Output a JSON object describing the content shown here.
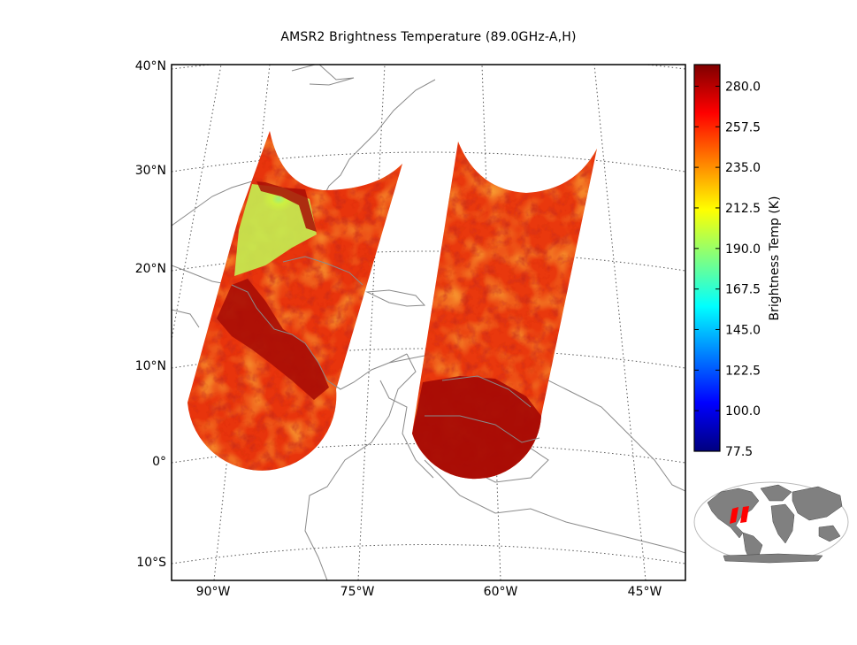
{
  "title": "AMSR2 Brightness Temperature (89.0GHz-A,H)",
  "colorbar": {
    "label": "Brightness Temp (K)",
    "min": 77.5,
    "max": 292.0,
    "ticks": [
      "280.0",
      "257.5",
      "235.0",
      "212.5",
      "190.0",
      "167.5",
      "145.0",
      "122.5",
      "100.0",
      "77.5"
    ],
    "colors": [
      "#00007f",
      "#0000ff",
      "#0080ff",
      "#00ffff",
      "#80ff80",
      "#ffff00",
      "#ff8000",
      "#ff0000",
      "#7f0000"
    ]
  },
  "map": {
    "projection": "lambert-conformal",
    "lat_labels": [
      "40°N",
      "30°N",
      "20°N",
      "10°N",
      "0°",
      "10°S"
    ],
    "lon_labels": [
      "90°W",
      "75°W",
      "60°W",
      "45°W"
    ],
    "swath_colors": {
      "dominant": "#e8300c",
      "land": "#a80d06",
      "cold": "#b8f048"
    }
  },
  "inset": {
    "type": "global-overview",
    "land_color": "#808080",
    "highlight_color": "#ff0000"
  }
}
